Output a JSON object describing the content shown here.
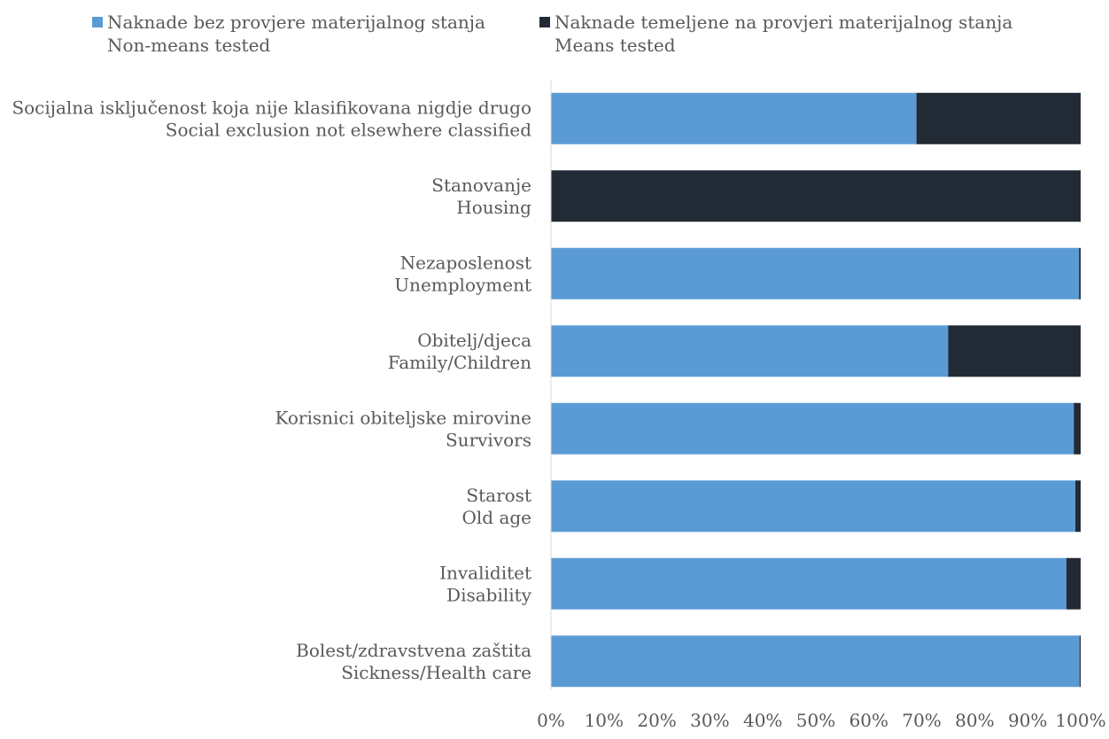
{
  "chart_data": {
    "type": "bar",
    "orientation": "horizontal",
    "stacked": true,
    "categories": [
      [
        "Socijalna isključenost koja nije klasifikovana nigdje drugo",
        "Social exclusion not elsewhere classified"
      ],
      [
        "Stanovanje",
        "Housing"
      ],
      [
        "Nezaposlenost",
        "Unemployment"
      ],
      [
        "Obitelj/djeca",
        "Family/Children"
      ],
      [
        "Korisnici obiteljske mirovine",
        "Survivors"
      ],
      [
        "Starost",
        "Old age"
      ],
      [
        "Invaliditet",
        "Disability"
      ],
      [
        "Bolest/zdravstvena zaštita",
        "Sickness/Health care"
      ]
    ],
    "series": [
      {
        "name": [
          "Naknade bez provjere materijalnog stanja",
          "Non-means tested"
        ],
        "color": "#5B9BD5",
        "values": [
          69,
          0,
          99.7,
          75,
          98.7,
          99,
          97.3,
          99.8
        ]
      },
      {
        "name": [
          "Naknade temeljene na provjeri materijalnog stanja",
          "Means tested"
        ],
        "color": "#222A35",
        "values": [
          31,
          100,
          0.3,
          25,
          1.3,
          1,
          2.7,
          0.2
        ]
      }
    ],
    "xlim": [
      0,
      100
    ],
    "x_ticks": [
      "0%",
      "10%",
      "20%",
      "30%",
      "40%",
      "50%",
      "60%",
      "70%",
      "80%",
      "90%",
      "100%"
    ],
    "grid": false,
    "legend_position": "top"
  }
}
